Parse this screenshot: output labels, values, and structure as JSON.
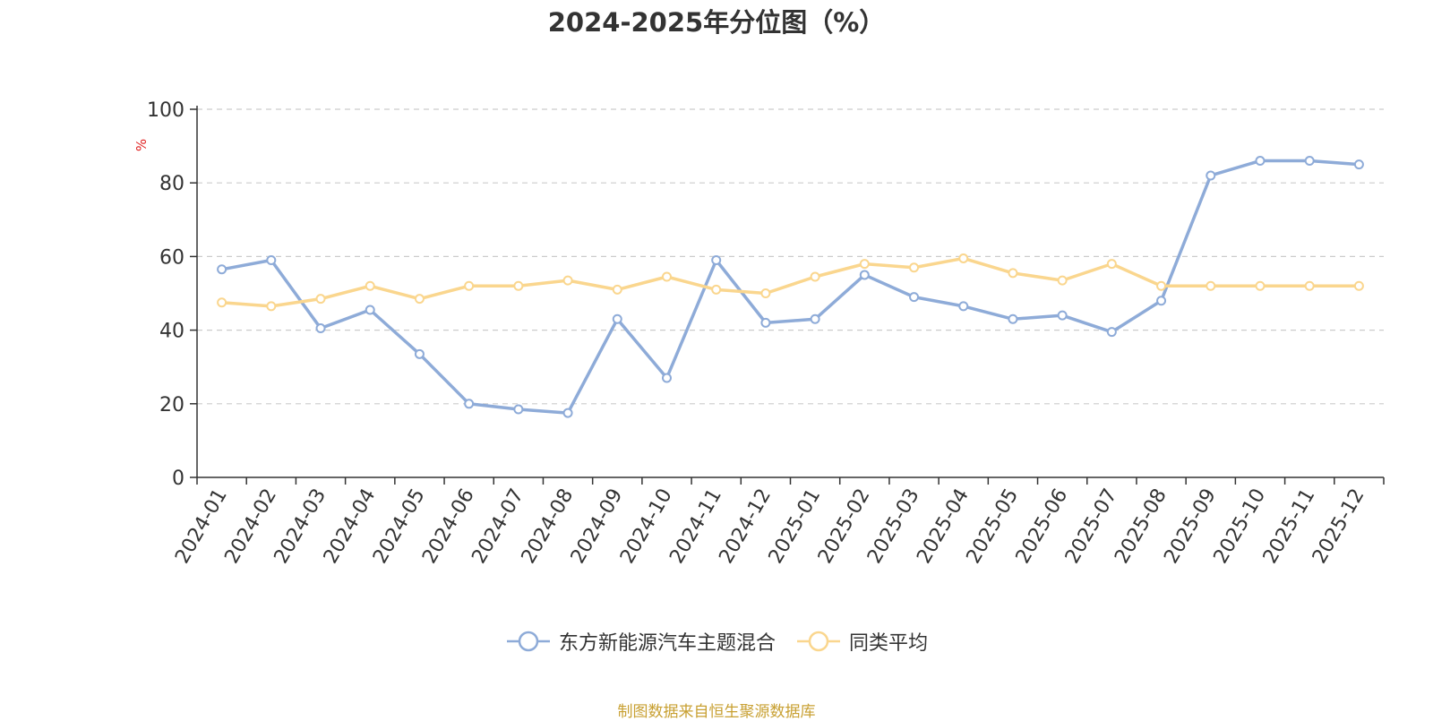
{
  "chart_data": {
    "type": "line",
    "title": "2024-2025年分位图（%）",
    "ylabel": "%",
    "xlabel": "",
    "ylim": [
      0,
      100
    ],
    "yticks": [
      0,
      20,
      40,
      60,
      80,
      100
    ],
    "grid": true,
    "legend_position": "bottom-center",
    "categories": [
      "2024-01",
      "2024-02",
      "2024-03",
      "2024-04",
      "2024-05",
      "2024-06",
      "2024-07",
      "2024-08",
      "2024-09",
      "2024-10",
      "2024-11",
      "2024-12",
      "2025-01",
      "2025-02",
      "2025-03",
      "2025-04",
      "2025-05",
      "2025-06",
      "2025-07",
      "2025-08",
      "2025-09",
      "2025-10",
      "2025-11",
      "2025-12"
    ],
    "series": [
      {
        "name": "东方新能源汽车主题混合",
        "color": "#8eabd8",
        "values": [
          56.5,
          59.0,
          40.5,
          45.5,
          33.5,
          20.0,
          18.5,
          17.5,
          43.0,
          27.0,
          59.0,
          42.0,
          43.0,
          55.0,
          49.0,
          46.5,
          43.0,
          44.0,
          39.5,
          48.0,
          82.0,
          86.0,
          86.0,
          85.0
        ]
      },
      {
        "name": "同类平均",
        "color": "#fad68e",
        "values": [
          47.5,
          46.5,
          48.5,
          52.0,
          48.5,
          52.0,
          52.0,
          53.5,
          51.0,
          54.5,
          51.0,
          50.0,
          54.5,
          58.0,
          57.0,
          59.5,
          55.5,
          53.5,
          58.0,
          52.0,
          52.0,
          52.0,
          52.0,
          52.0
        ]
      }
    ]
  },
  "source_text": "制图数据来自恒生聚源数据库"
}
